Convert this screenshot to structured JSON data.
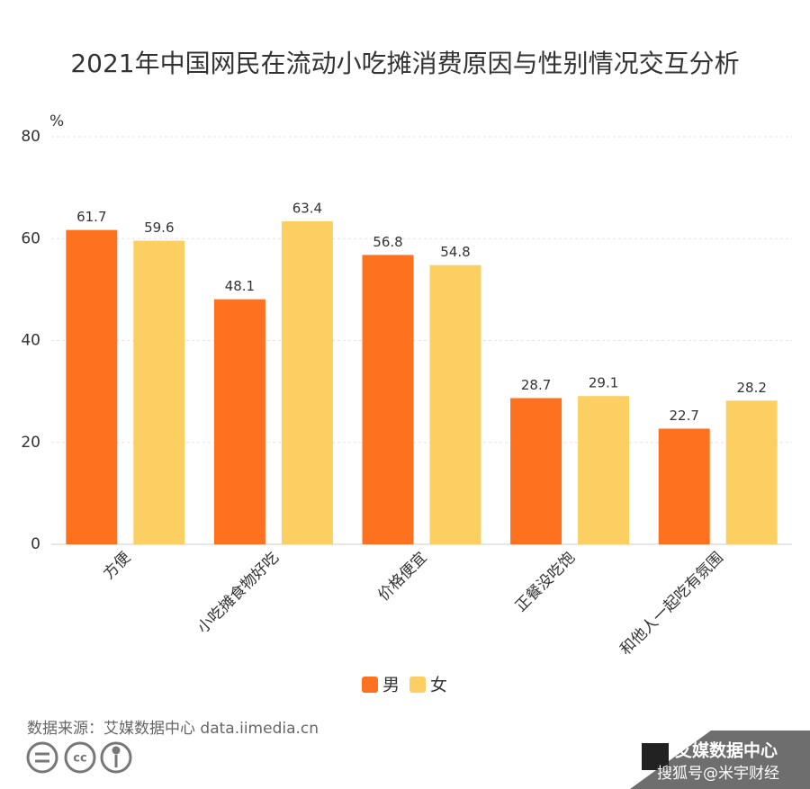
{
  "chart_data": {
    "type": "bar",
    "title": "2021年中国网民在流动小吃摊消费原因与性别情况交互分析",
    "y_unit": "%",
    "categories": [
      "方便",
      "小吃摊食物好吃",
      "价格便宜",
      "正餐没吃饱",
      "和他人一起吃有氛围"
    ],
    "series": [
      {
        "name": "男",
        "color": "#fd711f",
        "values": [
          61.7,
          48.1,
          56.8,
          28.7,
          22.7
        ]
      },
      {
        "name": "女",
        "color": "#fccf63",
        "values": [
          59.6,
          63.4,
          54.8,
          29.1,
          28.2
        ]
      }
    ],
    "ylim": [
      0,
      80
    ],
    "yticks": [
      0,
      20,
      40,
      60,
      80
    ],
    "grid": true,
    "source": "数据来源：艾媒数据中心 data.iimedia.cn",
    "watermark": {
      "brand": "艾媒数据中心",
      "credit": "搜狐号@米宇财经"
    }
  }
}
